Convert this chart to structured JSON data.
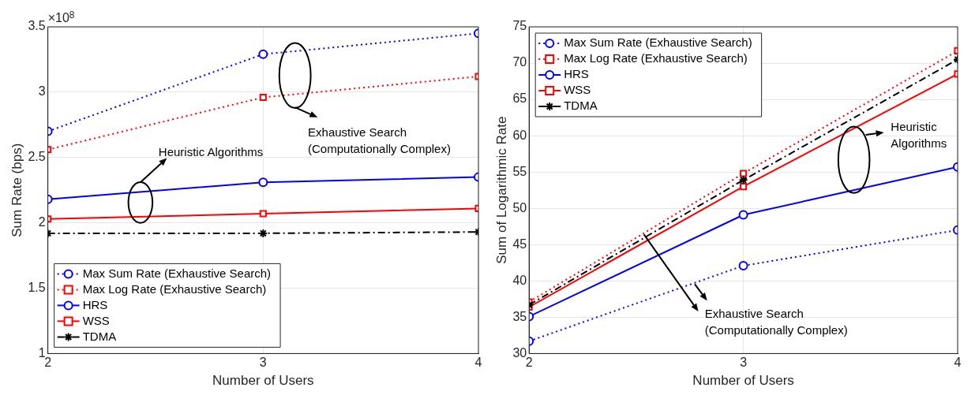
{
  "chart_data": [
    {
      "type": "line",
      "xlabel": "Number of Users",
      "ylabel": "Sum Rate (bps)",
      "x": [
        2,
        3,
        4
      ],
      "xlim": [
        2,
        4
      ],
      "xticks": [
        2,
        3,
        4
      ],
      "ylim": [
        1,
        3.5
      ],
      "yticks": [
        1,
        1.5,
        2,
        2.5,
        3,
        3.5
      ],
      "grid": true,
      "legend": "bottom left",
      "series": [
        {
          "name": "Max Sum Rate (Exhaustive Search)",
          "color": "#0000ff",
          "values": [
            2.7,
            3.29,
            3.45
          ],
          "marker": "circle",
          "line_style": "dotted"
        },
        {
          "name": "Max Log Rate (Exhaustive Search)",
          "color": "#ff0000",
          "values": [
            2.56,
            2.96,
            3.12
          ],
          "marker": "square",
          "line_style": "dotted"
        },
        {
          "name": "HRS",
          "color": "#0000ff",
          "values": [
            2.18,
            2.31,
            2.35
          ],
          "marker": "circle",
          "line_style": "solid"
        },
        {
          "name": "WSS",
          "color": "#ff0000",
          "values": [
            2.03,
            2.07,
            2.11
          ],
          "marker": "square",
          "line_style": "solid"
        },
        {
          "name": "TDMA",
          "color": "#000000",
          "values": [
            1.92,
            1.92,
            1.93
          ],
          "marker": "cross",
          "line_style": "dashed"
        }
      ],
      "annotations": [
        "×10$^{8}$",
        "Heuristic Algorithms",
        "Exhaustive Search\n(Computationally Complex)"
      ]
    },
    {
      "type": "line",
      "xlabel": "Number of Users",
      "ylabel": "Sum of Logarithmic Rate",
      "x": [
        2,
        3,
        4
      ],
      "xlim": [
        2,
        4
      ],
      "xticks": [
        2,
        3,
        4
      ],
      "ylim": [
        30,
        75
      ],
      "yticks": [
        30,
        35,
        40,
        45,
        50,
        55,
        60,
        65,
        70,
        75
      ],
      "grid": true,
      "legend": "top left",
      "series": [
        {
          "name": "Max Sum Rate (Exhaustive Search)",
          "color": "#0000ff",
          "values": [
            31.7,
            42.1,
            47.0
          ],
          "marker": "circle",
          "line_style": "dotted"
        },
        {
          "name": "Max Log Rate (Exhaustive Search)",
          "color": "#ff0000",
          "values": [
            37.1,
            54.8,
            71.7
          ],
          "marker": "square",
          "line_style": "dotted"
        },
        {
          "name": "HRS",
          "color": "#0000ff",
          "values": [
            35.1,
            49.1,
            55.7
          ],
          "marker": "circle",
          "line_style": "solid"
        },
        {
          "name": "WSS",
          "color": "#ff0000",
          "values": [
            36.4,
            53.0,
            68.5
          ],
          "marker": "square",
          "line_style": "solid"
        },
        {
          "name": "TDMA",
          "color": "#000000",
          "values": [
            36.7,
            53.9,
            70.5
          ],
          "marker": "cross",
          "line_style": "dashed"
        }
      ],
      "annotations": [
        "Heuristic\nAlgorithms",
        "Exhaustive Search\n(Computationally Complex)"
      ]
    }
  ]
}
